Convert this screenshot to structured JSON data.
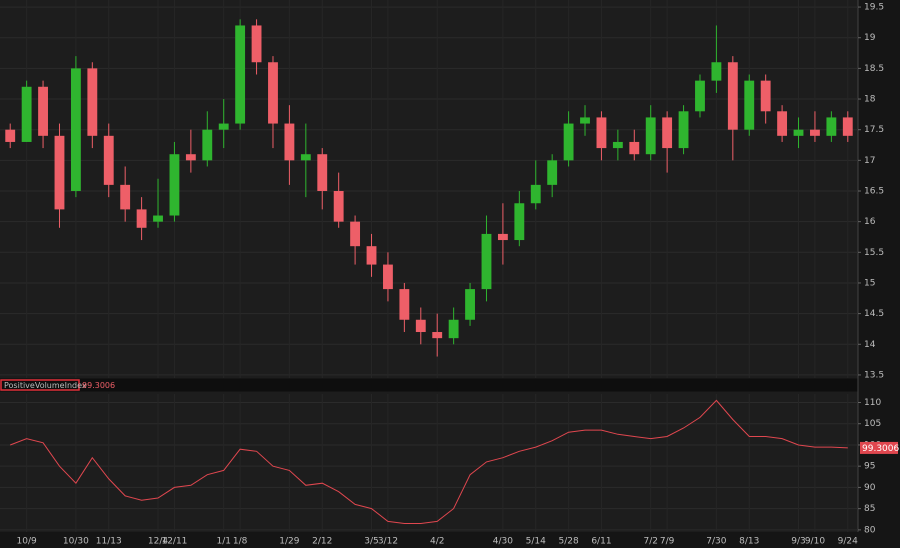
{
  "chart_data": [
    {
      "type": "candlestick",
      "categories": [
        null,
        "10/9",
        null,
        null,
        "10/30",
        null,
        "11/13",
        null,
        null,
        "12/4",
        "12/11",
        null,
        null,
        "1/1",
        "1/8",
        null,
        null,
        "1/29",
        null,
        "2/12",
        null,
        null,
        "3/5",
        "3/12",
        null,
        null,
        "4/2",
        null,
        null,
        null,
        "4/30",
        null,
        "5/14",
        null,
        "5/28",
        null,
        "6/11",
        null,
        null,
        "7/2",
        "7/9",
        null,
        null,
        "7/30",
        null,
        "8/13",
        null,
        null,
        "9/3",
        "9/10",
        null,
        "9/24"
      ],
      "open": [
        17.5,
        17.3,
        18.2,
        17.4,
        16.5,
        18.5,
        17.4,
        16.6,
        16.2,
        16.0,
        16.1,
        17.1,
        17.0,
        17.5,
        17.6,
        19.2,
        18.6,
        17.6,
        17.0,
        17.1,
        16.5,
        16.0,
        15.6,
        15.3,
        14.9,
        14.4,
        14.2,
        14.1,
        14.4,
        14.9,
        15.8,
        15.7,
        16.3,
        16.6,
        17.0,
        17.6,
        17.7,
        17.2,
        17.3,
        17.1,
        17.7,
        17.2,
        17.8,
        18.3,
        18.6,
        17.5,
        18.3,
        17.8,
        17.4,
        17.5,
        17.4,
        17.7
      ],
      "high": [
        17.6,
        18.3,
        18.3,
        17.6,
        18.7,
        18.6,
        17.6,
        16.9,
        16.4,
        16.7,
        17.3,
        17.5,
        17.8,
        18.0,
        19.3,
        19.3,
        18.7,
        17.9,
        17.6,
        17.2,
        16.8,
        16.1,
        15.8,
        15.5,
        15.0,
        14.6,
        14.5,
        14.6,
        15.0,
        16.1,
        16.3,
        16.5,
        17.0,
        17.1,
        17.8,
        17.9,
        17.8,
        17.5,
        17.5,
        17.9,
        17.8,
        17.9,
        18.4,
        19.2,
        18.7,
        18.4,
        18.4,
        17.9,
        17.7,
        17.8,
        17.8,
        17.8
      ],
      "low": [
        17.2,
        17.3,
        17.2,
        15.9,
        16.4,
        17.2,
        16.4,
        16.0,
        15.7,
        15.9,
        16.0,
        16.8,
        16.9,
        17.2,
        17.5,
        18.4,
        17.2,
        16.6,
        16.4,
        16.2,
        15.9,
        15.3,
        15.1,
        14.7,
        14.2,
        14.0,
        13.8,
        14.0,
        14.3,
        14.7,
        15.3,
        15.6,
        16.2,
        16.4,
        16.9,
        17.4,
        17.0,
        17.0,
        17.0,
        17.0,
        16.8,
        17.1,
        17.7,
        18.1,
        17.0,
        17.4,
        17.6,
        17.3,
        17.2,
        17.3,
        17.3,
        17.3
      ],
      "close": [
        17.3,
        18.2,
        17.4,
        16.2,
        18.5,
        17.4,
        16.6,
        16.2,
        15.9,
        16.1,
        17.1,
        17.0,
        17.5,
        17.6,
        19.2,
        18.6,
        17.6,
        17.0,
        17.1,
        16.5,
        16.0,
        15.6,
        15.3,
        14.9,
        14.4,
        14.2,
        14.1,
        14.4,
        14.9,
        15.8,
        15.7,
        16.3,
        16.6,
        17.0,
        17.6,
        17.7,
        17.2,
        17.3,
        17.1,
        17.7,
        17.2,
        17.8,
        18.3,
        18.6,
        17.5,
        18.3,
        17.8,
        17.4,
        17.5,
        17.4,
        17.7,
        17.4
      ],
      "up_color": "#2fb52f",
      "down_color": "#ee5f68",
      "ylim": [
        13.45,
        19.55
      ],
      "yticks": [
        13.5,
        14,
        14.5,
        15,
        15.5,
        16,
        16.5,
        17,
        17.5,
        18,
        18.5,
        19,
        19.5
      ],
      "grid": true
    },
    {
      "type": "line",
      "series": [
        {
          "name": "PositiveVolumeIndex",
          "color": "#e0474f",
          "values": [
            100,
            101.5,
            100.5,
            95,
            91,
            97,
            92,
            88,
            87,
            87.5,
            90,
            90.5,
            93,
            94,
            99,
            98.5,
            95,
            94,
            90.5,
            91,
            89,
            86,
            85,
            82,
            81.5,
            81.5,
            82,
            85,
            93,
            96,
            97,
            98.5,
            99.5,
            101,
            103,
            103.5,
            103.5,
            102.5,
            102,
            101.5,
            102,
            104,
            106.5,
            110.5,
            106,
            102,
            102,
            101.5,
            100,
            99.5,
            99.5,
            99.3006
          ]
        }
      ],
      "ylim": [
        79.5,
        112
      ],
      "yticks": [
        80,
        85,
        90,
        95,
        100,
        105,
        110
      ],
      "grid": true
    }
  ]
}
